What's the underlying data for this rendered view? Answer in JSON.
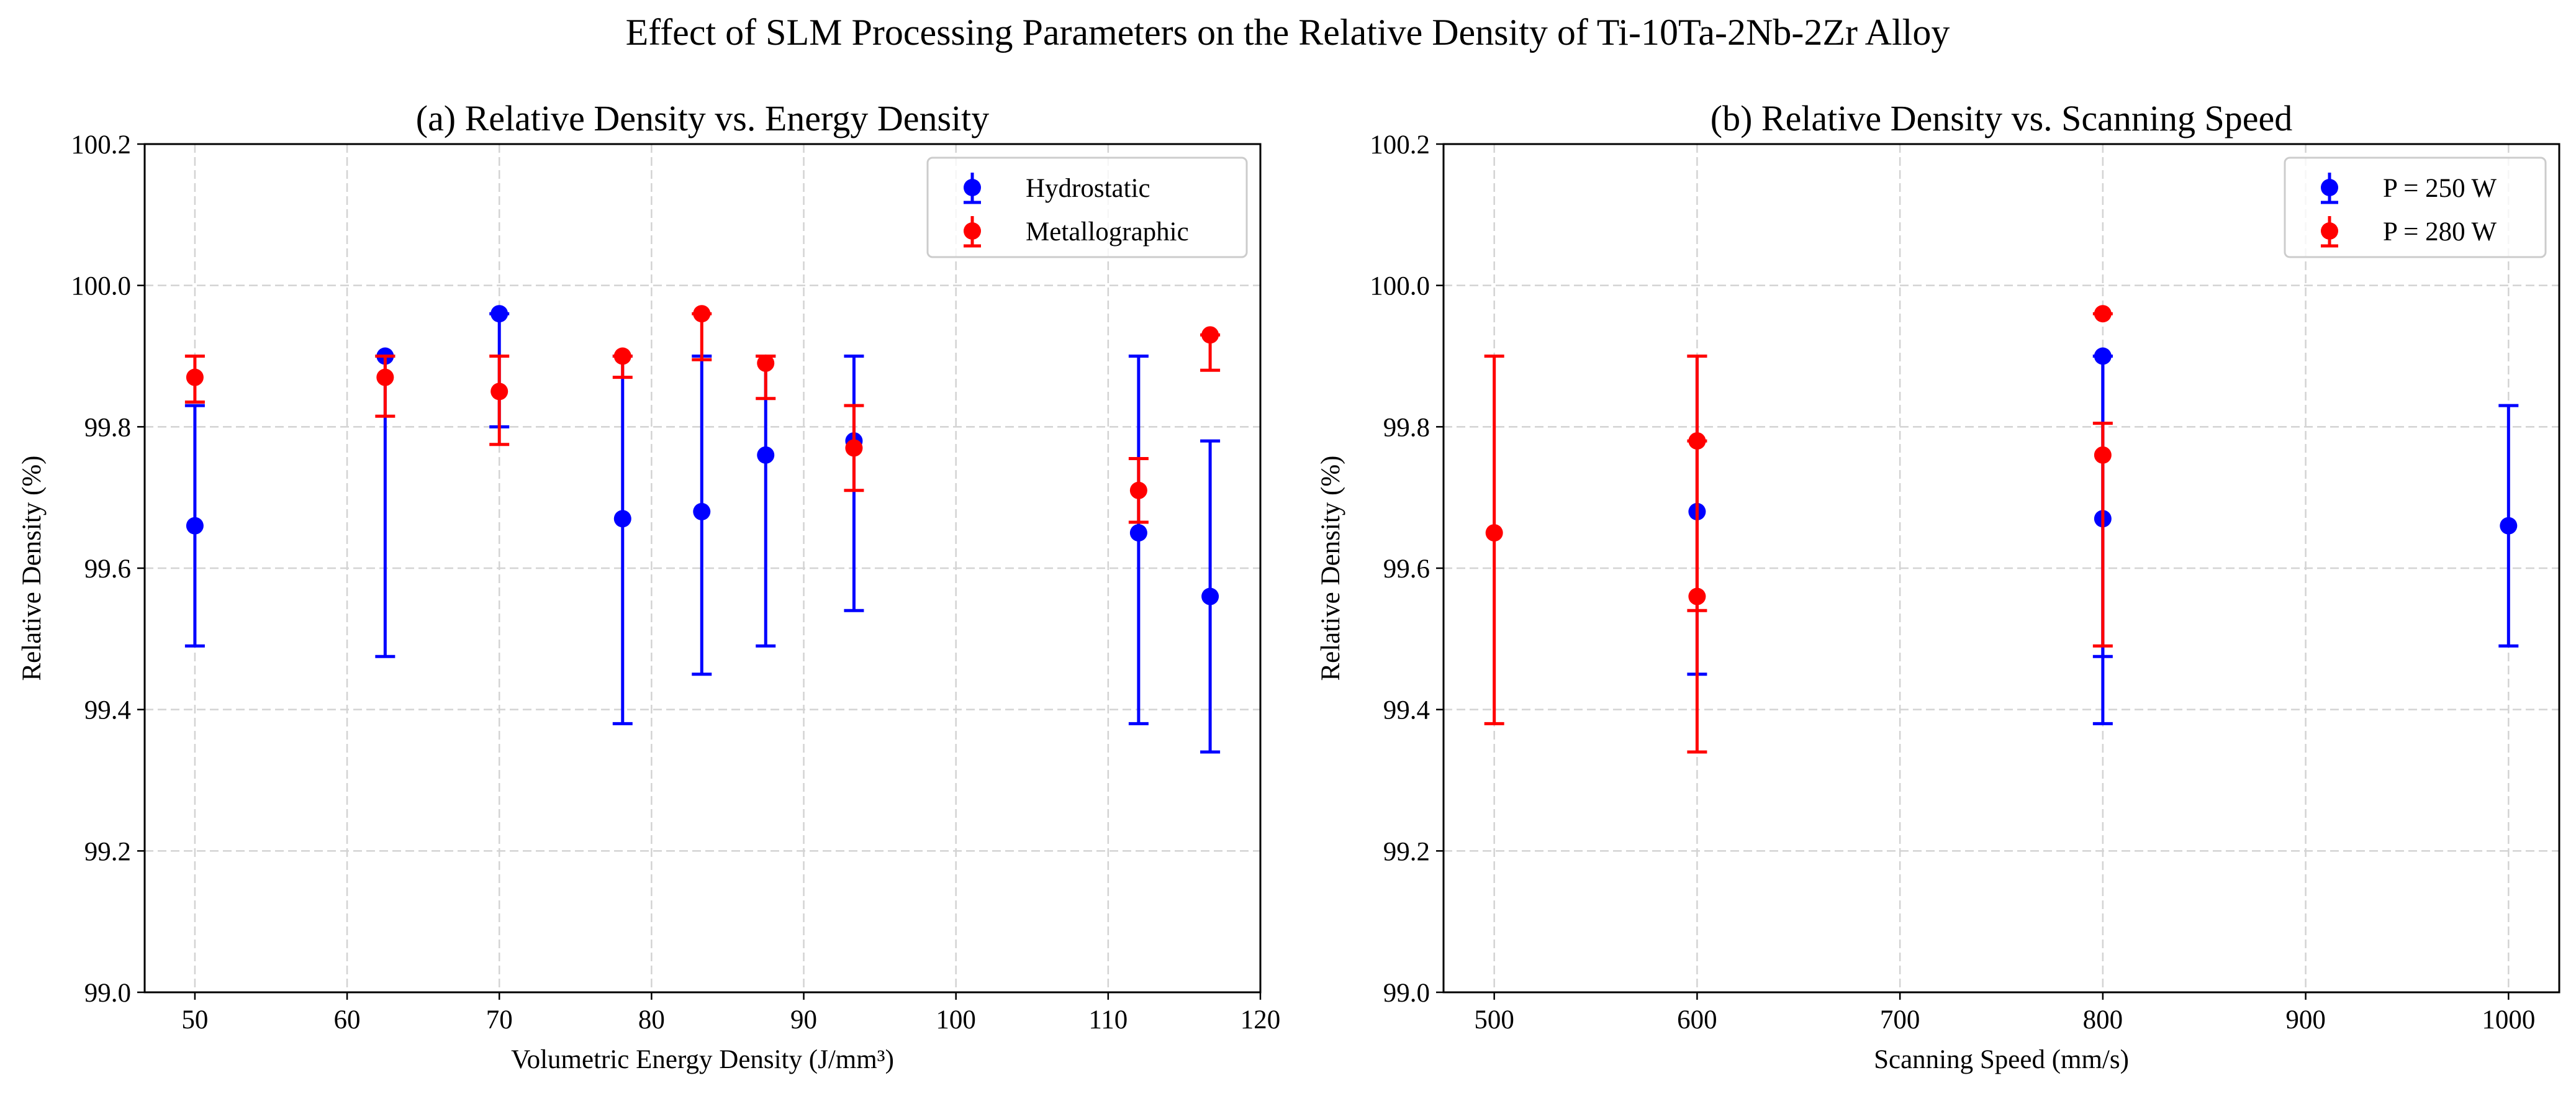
{
  "figure": {
    "suptitle": "Effect of SLM Processing Parameters on the Relative Density of Ti-10Ta-2Nb-2Zr Alloy"
  },
  "chart_data": [
    {
      "id": "a",
      "type": "scatter",
      "error_bars": true,
      "title": "(a) Relative Density vs. Energy Density",
      "xlabel": "Volumetric Energy Density (J/mm³)",
      "ylabel": "Relative Density (%)",
      "xlim": [
        46.7,
        120
      ],
      "ylim": [
        99.0,
        100.2
      ],
      "xticks": [
        50,
        60,
        70,
        80,
        90,
        100,
        110,
        120
      ],
      "yticks": [
        99.0,
        99.2,
        99.4,
        99.6,
        99.8,
        100.0,
        100.2
      ],
      "tick_labels_y": [
        "99.0",
        "99.2",
        "99.4",
        "99.6",
        "99.8",
        "100.0",
        "100.2"
      ],
      "grid": true,
      "legend_position": "top-right",
      "series": [
        {
          "name": "Hydrostatic",
          "color": "#0000ff",
          "points": [
            {
              "x": 50.0,
              "y": 99.66,
              "ylow": 99.49,
              "yhigh": 99.83
            },
            {
              "x": 62.5,
              "y": 99.9,
              "ylow": 99.475,
              "yhigh": 99.9
            },
            {
              "x": 70.0,
              "y": 99.96,
              "ylow": 99.8,
              "yhigh": 99.96
            },
            {
              "x": 78.1,
              "y": 99.67,
              "ylow": 99.38,
              "yhigh": 99.9
            },
            {
              "x": 83.3,
              "y": 99.68,
              "ylow": 99.45,
              "yhigh": 99.9
            },
            {
              "x": 87.5,
              "y": 99.76,
              "ylow": 99.49,
              "yhigh": 99.9
            },
            {
              "x": 93.3,
              "y": 99.78,
              "ylow": 99.54,
              "yhigh": 99.9
            },
            {
              "x": 112.0,
              "y": 99.65,
              "ylow": 99.38,
              "yhigh": 99.9
            },
            {
              "x": 116.7,
              "y": 99.56,
              "ylow": 99.34,
              "yhigh": 99.78
            }
          ]
        },
        {
          "name": "Metallographic",
          "color": "#ff0000",
          "points": [
            {
              "x": 50.0,
              "y": 99.87,
              "ylow": 99.835,
              "yhigh": 99.9
            },
            {
              "x": 62.5,
              "y": 99.87,
              "ylow": 99.815,
              "yhigh": 99.9
            },
            {
              "x": 70.0,
              "y": 99.85,
              "ylow": 99.775,
              "yhigh": 99.9
            },
            {
              "x": 78.1,
              "y": 99.9,
              "ylow": 99.87,
              "yhigh": 99.9
            },
            {
              "x": 83.3,
              "y": 99.96,
              "ylow": 99.895,
              "yhigh": 99.96
            },
            {
              "x": 87.5,
              "y": 99.89,
              "ylow": 99.84,
              "yhigh": 99.9
            },
            {
              "x": 93.3,
              "y": 99.77,
              "ylow": 99.71,
              "yhigh": 99.83
            },
            {
              "x": 112.0,
              "y": 99.71,
              "ylow": 99.665,
              "yhigh": 99.755
            },
            {
              "x": 116.7,
              "y": 99.93,
              "ylow": 99.88,
              "yhigh": 99.93
            }
          ]
        }
      ]
    },
    {
      "id": "b",
      "type": "scatter",
      "error_bars": true,
      "title": "(b) Relative Density vs. Scanning Speed",
      "xlabel": "Scanning Speed (mm/s)",
      "ylabel": "Relative Density (%)",
      "xlim": [
        475,
        1025
      ],
      "ylim": [
        99.0,
        100.2
      ],
      "xticks": [
        500,
        600,
        700,
        800,
        900,
        1000
      ],
      "yticks": [
        99.0,
        99.2,
        99.4,
        99.6,
        99.8,
        100.0,
        100.2
      ],
      "tick_labels_y": [
        "99.0",
        "99.2",
        "99.4",
        "99.6",
        "99.8",
        "100.0",
        "100.2"
      ],
      "grid": true,
      "legend_position": "top-right",
      "series": [
        {
          "name": "P = 250 W",
          "color": "#0000ff",
          "points": [
            {
              "x": 600,
              "y": 99.68,
              "ylow": 99.45,
              "yhigh": 99.9
            },
            {
              "x": 800,
              "y": 99.9,
              "ylow": 99.475,
              "yhigh": 99.9
            },
            {
              "x": 800,
              "y": 99.67,
              "ylow": 99.38,
              "yhigh": 99.9
            },
            {
              "x": 1000,
              "y": 99.66,
              "ylow": 99.49,
              "yhigh": 99.83
            }
          ]
        },
        {
          "name": "P = 280 W",
          "color": "#ff0000",
          "points": [
            {
              "x": 500,
              "y": 99.65,
              "ylow": 99.38,
              "yhigh": 99.9
            },
            {
              "x": 600,
              "y": 99.78,
              "ylow": 99.54,
              "yhigh": 99.9
            },
            {
              "x": 600,
              "y": 99.56,
              "ylow": 99.34,
              "yhigh": 99.78
            },
            {
              "x": 800,
              "y": 99.96,
              "ylow": 99.96,
              "yhigh": 99.96
            },
            {
              "x": 800,
              "y": 99.76,
              "ylow": 99.49,
              "yhigh": 99.805
            }
          ]
        }
      ]
    }
  ]
}
